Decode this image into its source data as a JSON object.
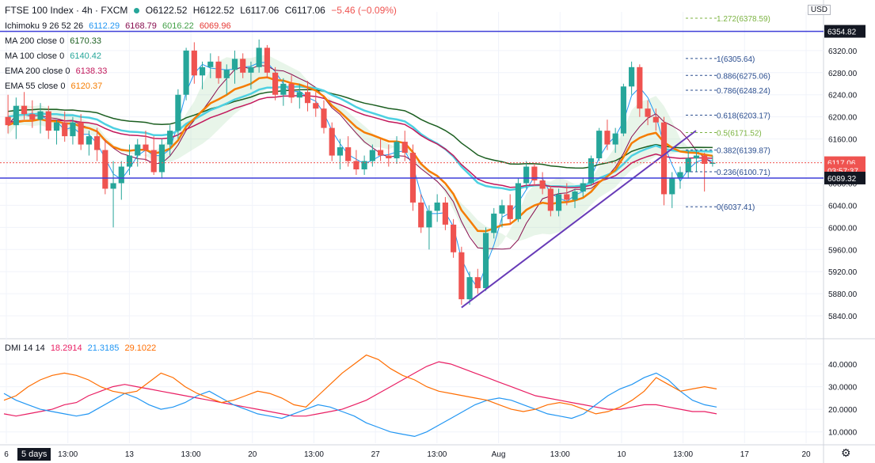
{
  "header": {
    "symbol": "FTSE 100 Index · 4h · FXCM",
    "open": "O6122.52",
    "high": "H6122.52",
    "low": "L6117.06",
    "close": "C6117.06",
    "change": "−5.46 (−0.09%)"
  },
  "indicators": {
    "ichimoku": {
      "label": "Ichimoku 9 26 52 26",
      "values": [
        "6112.29",
        "6168.79",
        "6016.22",
        "6069.96"
      ]
    },
    "ma200": {
      "label": "MA 200 close 0",
      "value": "6170.33"
    },
    "ma100": {
      "label": "MA 100 close 0",
      "value": "6140.42"
    },
    "ema200": {
      "label": "EMA 200 close 0",
      "value": "6138.33"
    },
    "ema55": {
      "label": "EMA 55 close 0",
      "value": "6120.37"
    },
    "dmi": {
      "label": "DMI 14 14",
      "values": [
        "18.2914",
        "21.3185",
        "29.1022"
      ]
    }
  },
  "currency": "USD",
  "timeframe_button": "5 days",
  "colors": {
    "up": "#26a69a",
    "down": "#ef5350",
    "ema55": "#f57c00",
    "ma100": "#4dd0e1",
    "ema200": "#c2185b",
    "ma200": "#1b5e20",
    "dmi_plus": "#2196f3",
    "dmi_minus": "#e91e63",
    "adx": "#ff6d00",
    "fib": "#2a4d8f",
    "hline": "#3f3fd8",
    "trend": "#673ab7"
  },
  "chart_data": {
    "type": "candlestick",
    "price_axis": {
      "ticks": [
        "6320.00",
        "6280.00",
        "6240.00",
        "6200.00",
        "6160.00",
        "6120.00",
        "6080.00",
        "6040.00",
        "6000.00",
        "5960.00",
        "5920.00",
        "5880.00",
        "5840.00"
      ],
      "ylim": [
        5810,
        6390
      ]
    },
    "time_axis": {
      "ticks": [
        "6",
        "13:00",
        "13",
        "13:00",
        "20",
        "13:00",
        "27",
        "13:00",
        "Aug",
        "13:00",
        "10",
        "13:00",
        "17",
        "20"
      ]
    },
    "price_labels": [
      {
        "text": "6354.82",
        "value": 6354.82,
        "style": "dark"
      },
      {
        "text": "6117.06",
        "value": 6117.06,
        "style": "red"
      },
      {
        "text": "03:57:37",
        "value": 6103,
        "style": "red"
      },
      {
        "text": "6089.32",
        "value": 6089.32,
        "style": "dark"
      }
    ],
    "horizontal_lines": [
      6354.82,
      6089.32
    ],
    "fibonacci": [
      {
        "label": "1.272(6378.59)",
        "value": 6378.59
      },
      {
        "label": "1(6305.64)",
        "value": 6305.64
      },
      {
        "label": "0.886(6275.06)",
        "value": 6275.06
      },
      {
        "label": "0.786(6248.24)",
        "value": 6248.24
      },
      {
        "label": "0.618(6203.17)",
        "value": 6203.17
      },
      {
        "label": "0.5(6171.52)",
        "value": 6171.52
      },
      {
        "label": "0.382(6139.87)",
        "value": 6139.87
      },
      {
        "label": "0.236(6100.71)",
        "value": 6100.71
      },
      {
        "label": "0(6037.41)",
        "value": 6037.41
      }
    ],
    "trendline": [
      [
        5855,
        "start"
      ],
      [
        6175,
        "end"
      ]
    ],
    "candles": [
      [
        6200,
        6240,
        6170,
        6185
      ],
      [
        6185,
        6235,
        6160,
        6220
      ],
      [
        6220,
        6245,
        6195,
        6205
      ],
      [
        6205,
        6230,
        6180,
        6195
      ],
      [
        6195,
        6225,
        6170,
        6210
      ],
      [
        6210,
        6220,
        6160,
        6175
      ],
      [
        6175,
        6195,
        6150,
        6190
      ],
      [
        6190,
        6210,
        6155,
        6165
      ],
      [
        6165,
        6200,
        6150,
        6190
      ],
      [
        6190,
        6205,
        6140,
        6150
      ],
      [
        6150,
        6175,
        6130,
        6165
      ],
      [
        6165,
        6180,
        6120,
        6140
      ],
      [
        6140,
        6160,
        6060,
        6070
      ],
      [
        6070,
        6120,
        6000,
        6080
      ],
      [
        6080,
        6120,
        6050,
        6110
      ],
      [
        6110,
        6150,
        6095,
        6130
      ],
      [
        6130,
        6160,
        6110,
        6150
      ],
      [
        6150,
        6175,
        6120,
        6140
      ],
      [
        6140,
        6165,
        6095,
        6100
      ],
      [
        6100,
        6160,
        6090,
        6150
      ],
      [
        6150,
        6185,
        6130,
        6175
      ],
      [
        6175,
        6250,
        6160,
        6240
      ],
      [
        6240,
        6325,
        6230,
        6320
      ],
      [
        6320,
        6335,
        6260,
        6275
      ],
      [
        6275,
        6300,
        6250,
        6290
      ],
      [
        6290,
        6315,
        6270,
        6300
      ],
      [
        6300,
        6310,
        6260,
        6270
      ],
      [
        6270,
        6295,
        6240,
        6285
      ],
      [
        6285,
        6320,
        6260,
        6305
      ],
      [
        6305,
        6315,
        6270,
        6280
      ],
      [
        6280,
        6300,
        6250,
        6290
      ],
      [
        6290,
        6340,
        6280,
        6325
      ],
      [
        6325,
        6330,
        6270,
        6280
      ],
      [
        6280,
        6290,
        6230,
        6240
      ],
      [
        6240,
        6270,
        6220,
        6260
      ],
      [
        6260,
        6275,
        6225,
        6235
      ],
      [
        6235,
        6260,
        6215,
        6245
      ],
      [
        6245,
        6265,
        6210,
        6225
      ],
      [
        6225,
        6245,
        6200,
        6215
      ],
      [
        6215,
        6230,
        6170,
        6180
      ],
      [
        6180,
        6190,
        6120,
        6130
      ],
      [
        6130,
        6160,
        6105,
        6145
      ],
      [
        6145,
        6165,
        6110,
        6120
      ],
      [
        6120,
        6140,
        6095,
        6105
      ],
      [
        6105,
        6130,
        6095,
        6120
      ],
      [
        6120,
        6150,
        6110,
        6140
      ],
      [
        6140,
        6160,
        6120,
        6130
      ],
      [
        6130,
        6150,
        6110,
        6125
      ],
      [
        6125,
        6165,
        6115,
        6155
      ],
      [
        6155,
        6175,
        6120,
        6135
      ],
      [
        6135,
        6150,
        6030,
        6045
      ],
      [
        6045,
        6060,
        5990,
        6000
      ],
      [
        6000,
        6040,
        5960,
        6030
      ],
      [
        6030,
        6060,
        6010,
        6045
      ],
      [
        6045,
        6055,
        5995,
        6005
      ],
      [
        6005,
        6015,
        5945,
        5955
      ],
      [
        5955,
        5965,
        5860,
        5870
      ],
      [
        5870,
        5920,
        5860,
        5910
      ],
      [
        5910,
        5925,
        5880,
        5890
      ],
      [
        5890,
        6000,
        5885,
        5990
      ],
      [
        5990,
        6035,
        5980,
        6025
      ],
      [
        6025,
        6050,
        6000,
        6040
      ],
      [
        6040,
        6060,
        6005,
        6015
      ],
      [
        6015,
        6090,
        6010,
        6080
      ],
      [
        6080,
        6120,
        6070,
        6110
      ],
      [
        6110,
        6115,
        6075,
        6085
      ],
      [
        6085,
        6100,
        6060,
        6070
      ],
      [
        6070,
        6075,
        6020,
        6030
      ],
      [
        6030,
        6070,
        6020,
        6060
      ],
      [
        6060,
        6080,
        6040,
        6050
      ],
      [
        6050,
        6070,
        6035,
        6065
      ],
      [
        6065,
        6090,
        6055,
        6080
      ],
      [
        6080,
        6130,
        6075,
        6125
      ],
      [
        6125,
        6180,
        6120,
        6175
      ],
      [
        6175,
        6195,
        6140,
        6150
      ],
      [
        6150,
        6180,
        6135,
        6170
      ],
      [
        6170,
        6260,
        6165,
        6255
      ],
      [
        6255,
        6300,
        6240,
        6290
      ],
      [
        6290,
        6295,
        6200,
        6215
      ],
      [
        6215,
        6230,
        6185,
        6200
      ],
      [
        6200,
        6215,
        6175,
        6190
      ],
      [
        6190,
        6200,
        6040,
        6060
      ],
      [
        6060,
        6100,
        6035,
        6090
      ],
      [
        6090,
        6110,
        6070,
        6100
      ],
      [
        6100,
        6140,
        6090,
        6125
      ],
      [
        6125,
        6140,
        6100,
        6130
      ],
      [
        6130,
        6135,
        6065,
        6115
      ],
      [
        6115,
        6130,
        6110,
        6117
      ]
    ],
    "dmi_axis": {
      "ticks": [
        "40.0000",
        "30.0000",
        "20.0000",
        "10.0000"
      ],
      "ylim": [
        5,
        47
      ]
    },
    "dmi_series": [
      {
        "name": "18.2914",
        "values": [
          18,
          17,
          18,
          19,
          20,
          22,
          23,
          26,
          28,
          30,
          31,
          30,
          29,
          28,
          27,
          26,
          25,
          24,
          23,
          22,
          21,
          20,
          19,
          18,
          17,
          17,
          18,
          19,
          20,
          22,
          24,
          27,
          30,
          33,
          36,
          39,
          41,
          40,
          38,
          36,
          34,
          32,
          30,
          28,
          26,
          25,
          24,
          23,
          22,
          21,
          20,
          20,
          21,
          22,
          22,
          21,
          20,
          19,
          19,
          18
        ]
      },
      {
        "name": "21.3185",
        "values": [
          27,
          24,
          22,
          20,
          19,
          18,
          17,
          18,
          21,
          24,
          27,
          25,
          22,
          20,
          21,
          23,
          26,
          28,
          25,
          22,
          20,
          18,
          17,
          16,
          18,
          20,
          22,
          21,
          19,
          17,
          14,
          12,
          10,
          9,
          8,
          10,
          13,
          16,
          19,
          22,
          24,
          25,
          24,
          22,
          20,
          18,
          17,
          16,
          18,
          22,
          26,
          29,
          31,
          34,
          36,
          33,
          28,
          24,
          22,
          21
        ]
      },
      {
        "name": "29.1022",
        "values": [
          24,
          26,
          30,
          33,
          35,
          36,
          35,
          33,
          30,
          28,
          27,
          28,
          32,
          36,
          34,
          30,
          27,
          25,
          23,
          24,
          26,
          28,
          27,
          25,
          22,
          21,
          26,
          31,
          36,
          40,
          44,
          42,
          38,
          35,
          33,
          30,
          28,
          27,
          26,
          25,
          24,
          22,
          20,
          19,
          20,
          22,
          23,
          22,
          20,
          18,
          19,
          21,
          24,
          28,
          34,
          31,
          28,
          29,
          30,
          29
        ]
      }
    ]
  }
}
